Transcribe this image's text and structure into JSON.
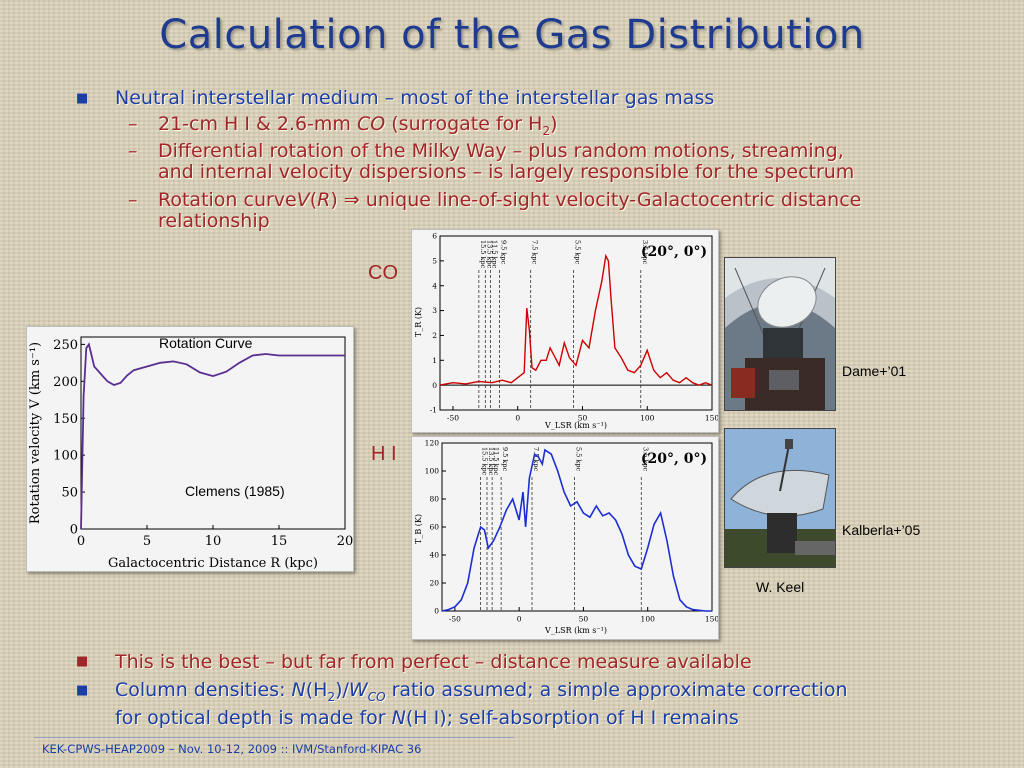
{
  "slide": {
    "title": "Calculation of the Gas Distribution",
    "bullets": {
      "b1": "Neutral interstellar medium – most of the interstellar gas mass",
      "s1_main": "21-cm H I & 2.6-mm ",
      "s1_co": "CO",
      "s1_rest": " (surrogate for H",
      "s1_sub": "2",
      "s1_end": ")",
      "s2_line1": "Differential rotation of the Milky Way – plus random motions, streaming,",
      "s2_line2": "and internal velocity dispersions – is largely responsible for the spectrum",
      "s3_a": "Rotation curve",
      "s3_v": "V",
      "s3_b": "(",
      "s3_r": "R",
      "s3_c": ") ⇒ unique line-of-sight velocity-Galactocentric distance",
      "s3_line2": "relationship",
      "b2": "This is the best – but far from perfect – distance measure available",
      "b3_a": "Column densities:  ",
      "b3_n": "N",
      "b3_h2": "(H",
      "b3_sub2": "2",
      "b3_slash": ")/",
      "b3_w": "W",
      "b3_co": "CO",
      "b3_rest": " ratio assumed; a simple approximate correction",
      "b3_line2a": "for optical depth is made for ",
      "b3_line2n": "N",
      "b3_line2b": "(H I); self-absorption of H I remains",
      "dash": "–"
    },
    "labels": {
      "co": "CO",
      "hi": "H I",
      "dame": "Dame+’01",
      "kalberla": "Kalberla+’05",
      "keel": "W. Keel",
      "rotation_curve": "Rotation Curve",
      "clemens": "Clemens (1985)"
    },
    "footer": "KEK-CPWS-HEAP2009 – Nov. 10-12, 2009 :: IVM/Stanford-KIPAC  36",
    "colors": {
      "title": "#1f3b8f",
      "bullet_blue": "#1a3ea8",
      "bullet_red": "#a1262a",
      "curve": "#5a2d91",
      "co_line": "#cc0000",
      "hi_line": "#1c2fd4"
    }
  },
  "chart_data": [
    {
      "type": "line",
      "xlabel": "Galactocentric Distance R (kpc)",
      "ylabel": "Rotation velocity V (km s⁻¹)",
      "xlim": [
        0,
        20
      ],
      "ylim": [
        0,
        260
      ],
      "xticks": [
        "0",
        "5",
        "10",
        "15",
        "20"
      ],
      "yticks": [
        "0",
        "50",
        "100",
        "150",
        "200",
        "250"
      ],
      "x": [
        0,
        0.2,
        0.4,
        0.6,
        0.8,
        1.0,
        1.5,
        2.0,
        2.5,
        3.0,
        3.5,
        4.0,
        5.0,
        6.0,
        7.0,
        8.0,
        9.0,
        10.0,
        11.0,
        12.0,
        13.0,
        14.0,
        15.0,
        16.0,
        17.0,
        18.0,
        19.0,
        20.0
      ],
      "y": [
        0,
        180,
        245,
        250,
        235,
        220,
        210,
        200,
        195,
        198,
        208,
        215,
        220,
        225,
        227,
        223,
        212,
        207,
        213,
        225,
        235,
        237,
        235,
        235,
        235,
        235,
        235,
        235
      ]
    },
    {
      "type": "line",
      "title": "(20°, 0°)",
      "xlabel": "V_LSR (km s⁻¹)",
      "ylabel": "T_R (K)",
      "xlim": [
        -60,
        150
      ],
      "ylim": [
        -1,
        6
      ],
      "xticks": [
        "-50",
        "0",
        "50",
        "100",
        "150"
      ],
      "yticks": [
        "-1",
        "0",
        "1",
        "2",
        "3",
        "4",
        "5",
        "6"
      ],
      "distance_markers": [
        {
          "label": "15.5 kpc",
          "v": -30
        },
        {
          "label": "13.5 kpc",
          "v": -25
        },
        {
          "label": "11.5 kpc",
          "v": -21
        },
        {
          "label": "9.5 kpc",
          "v": -14
        },
        {
          "label": "7.5 kpc",
          "v": 10
        },
        {
          "label": "5.5 kpc",
          "v": 43
        },
        {
          "label": "3.5 kpc",
          "v": 95
        }
      ],
      "x": [
        -60,
        -50,
        -40,
        -30,
        -20,
        -12,
        -5,
        0,
        5,
        7,
        9,
        11,
        14,
        18,
        22,
        25,
        28,
        32,
        36,
        40,
        45,
        50,
        55,
        60,
        65,
        68,
        70,
        72,
        75,
        80,
        85,
        90,
        95,
        100,
        105,
        110,
        115,
        120,
        125,
        130,
        135,
        140,
        145,
        150
      ],
      "y": [
        0,
        0.1,
        0.05,
        0.15,
        0.1,
        0.2,
        0.1,
        0.3,
        0.5,
        3.1,
        2.2,
        0.7,
        0.6,
        1.0,
        1.0,
        1.5,
        1.2,
        0.8,
        1.7,
        1.1,
        0.8,
        1.8,
        1.5,
        3.0,
        4.2,
        5.2,
        5.0,
        3.5,
        1.5,
        1.1,
        0.6,
        0.5,
        0.8,
        1.4,
        0.6,
        0.3,
        0.5,
        0.2,
        0.1,
        0.3,
        0.1,
        0.0,
        0.1,
        0.0
      ]
    },
    {
      "type": "line",
      "title": "(20°, 0°)",
      "xlabel": "V_LSR (km s⁻¹)",
      "ylabel": "T_B (K)",
      "xlim": [
        -60,
        150
      ],
      "ylim": [
        0,
        120
      ],
      "xticks": [
        "-50",
        "0",
        "50",
        "100",
        "150"
      ],
      "yticks": [
        "0",
        "20",
        "40",
        "60",
        "80",
        "100",
        "120"
      ],
      "distance_markers": [
        {
          "label": "15.5 kpc",
          "v": -30
        },
        {
          "label": "13.5 kpc",
          "v": -25
        },
        {
          "label": "11.5 kpc",
          "v": -21
        },
        {
          "label": "9.5 kpc",
          "v": -14
        },
        {
          "label": "7.5 kpc",
          "v": 10
        },
        {
          "label": "5.5 kpc",
          "v": 43
        },
        {
          "label": "3.5 kpc",
          "v": 95
        }
      ],
      "x": [
        -60,
        -55,
        -50,
        -45,
        -40,
        -35,
        -30,
        -27,
        -24,
        -20,
        -15,
        -10,
        -5,
        0,
        3,
        5,
        8,
        12,
        15,
        18,
        20,
        25,
        30,
        35,
        40,
        45,
        50,
        55,
        60,
        65,
        70,
        75,
        80,
        85,
        90,
        95,
        100,
        105,
        110,
        115,
        120,
        125,
        130,
        135,
        140,
        145,
        150
      ],
      "y": [
        0,
        1,
        3,
        8,
        20,
        45,
        60,
        58,
        45,
        50,
        60,
        72,
        80,
        65,
        85,
        60,
        95,
        112,
        110,
        105,
        115,
        112,
        100,
        85,
        75,
        78,
        70,
        67,
        75,
        68,
        70,
        65,
        55,
        40,
        32,
        30,
        45,
        62,
        70,
        50,
        25,
        8,
        3,
        1,
        0.5,
        0,
        0
      ]
    }
  ]
}
